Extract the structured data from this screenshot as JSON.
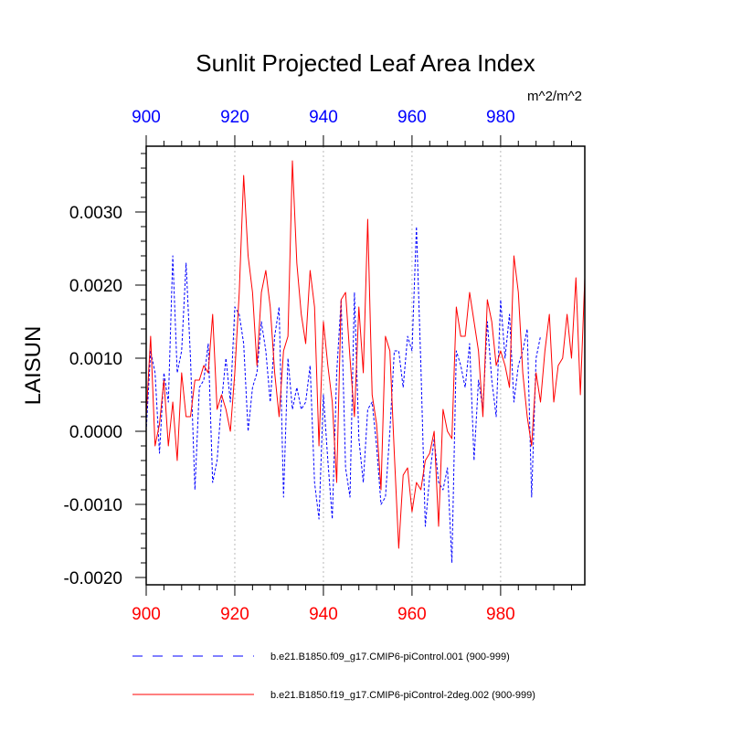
{
  "chart_data": {
    "type": "line",
    "title": "Sunlit Projected Leaf Area Index",
    "ylabel": "LAISUN",
    "units_label": "m^2/m^2",
    "xlim": [
      900,
      999
    ],
    "ylim": [
      -0.0021,
      0.0039
    ],
    "x_ticks": [
      900,
      920,
      940,
      960,
      980
    ],
    "x_tick_labels": [
      "900",
      "920",
      "940",
      "960",
      "980"
    ],
    "x_tick_labels_top": [
      "900",
      "920",
      "940",
      "960",
      "980"
    ],
    "y_ticks": [
      -0.002,
      -0.001,
      0.0,
      0.001,
      0.002,
      0.003
    ],
    "y_tick_labels": [
      "-0.0020",
      "-0.0010",
      "0.0000",
      "0.0010",
      "0.0020",
      "0.0030"
    ],
    "grid_x": [
      920,
      940,
      960,
      980
    ],
    "colors": {
      "bottom_axis": "#ff0000",
      "top_axis": "#0000ff",
      "series1": "#0000ff",
      "series2": "#ff0000"
    },
    "series": [
      {
        "name": "b.e21.B1850.f09_g17.CMIP6-piControl.001 (900-999)",
        "style": "dashed",
        "color": "#0000ff",
        "x_start": 900,
        "values": [
          0.0,
          0.0011,
          0.0008,
          -0.0003,
          0.0008,
          0.0004,
          0.0024,
          0.0008,
          0.0011,
          0.0023,
          0.001,
          -0.0008,
          0.0006,
          0.0007,
          0.0012,
          -0.0007,
          -0.0004,
          0.0004,
          0.001,
          0.0004,
          0.0017,
          0.0016,
          0.0012,
          0.0,
          0.0006,
          0.0008,
          0.0015,
          0.0011,
          0.0004,
          0.0013,
          0.0017,
          -0.0009,
          0.001,
          0.0003,
          0.0006,
          0.0003,
          0.0004,
          0.0009,
          -0.0007,
          -0.0012,
          0.0005,
          -0.0004,
          -0.0012,
          0.0008,
          0.0018,
          -0.0005,
          -0.0009,
          0.0019,
          -0.0001,
          -0.0007,
          0.0003,
          0.0004,
          -0.0002,
          -0.001,
          -0.0009,
          0.0,
          0.0011,
          0.0011,
          0.0006,
          0.0013,
          0.0011,
          0.0028,
          0.0009,
          -0.0013,
          -0.0006,
          -0.0001,
          -0.0007,
          -0.0008,
          -0.0005,
          -0.0018,
          0.0011,
          0.0009,
          0.0006,
          0.0012,
          -0.0004,
          0.0007,
          0.0003,
          0.0015,
          0.0007,
          0.0002,
          0.0018,
          0.001,
          0.0016,
          0.0004,
          0.0009,
          0.0011,
          0.0014,
          -0.0009,
          0.001,
          0.0013
        ]
      },
      {
        "name": "b.e21.B1850.f19_g17.CMIP6-piControl-2deg.002 (900-999)",
        "style": "solid",
        "color": "#ff0000",
        "x_start": 900,
        "values": [
          0.0002,
          0.0013,
          -0.0002,
          0.0001,
          0.0007,
          -0.0002,
          0.0004,
          -0.0004,
          0.0008,
          0.0002,
          0.0002,
          0.0007,
          0.0007,
          0.0009,
          0.0008,
          0.0016,
          0.0003,
          0.0005,
          0.0003,
          0.0,
          0.0008,
          0.0019,
          0.0035,
          0.0024,
          0.0019,
          0.0009,
          0.0019,
          0.0022,
          0.0017,
          0.0008,
          0.0002,
          0.0011,
          0.0013,
          0.0037,
          0.0023,
          0.0016,
          0.0012,
          0.0022,
          0.0017,
          -0.0002,
          0.0015,
          0.0009,
          0.0004,
          -0.0007,
          0.0018,
          0.0019,
          0.001,
          0.0002,
          0.0017,
          0.0008,
          0.0029,
          0.0005,
          0.0001,
          -0.0008,
          0.0013,
          0.0011,
          -0.0003,
          -0.0016,
          -0.0006,
          -0.0005,
          -0.0011,
          -0.0007,
          -0.0008,
          -0.0004,
          -0.0003,
          0.0,
          -0.0013,
          0.0003,
          0.0,
          -0.0001,
          0.0017,
          0.0013,
          0.0013,
          0.0019,
          0.0015,
          0.0011,
          0.0002,
          0.0018,
          0.0015,
          0.0009,
          0.0011,
          0.0009,
          0.0006,
          0.0024,
          0.0019,
          0.0008,
          0.0002,
          -0.0002,
          0.0008,
          0.0004,
          0.0011,
          0.0016,
          0.0004,
          0.0009,
          0.001,
          0.0016,
          0.001,
          0.0021,
          0.0005,
          0.0021
        ]
      }
    ]
  }
}
